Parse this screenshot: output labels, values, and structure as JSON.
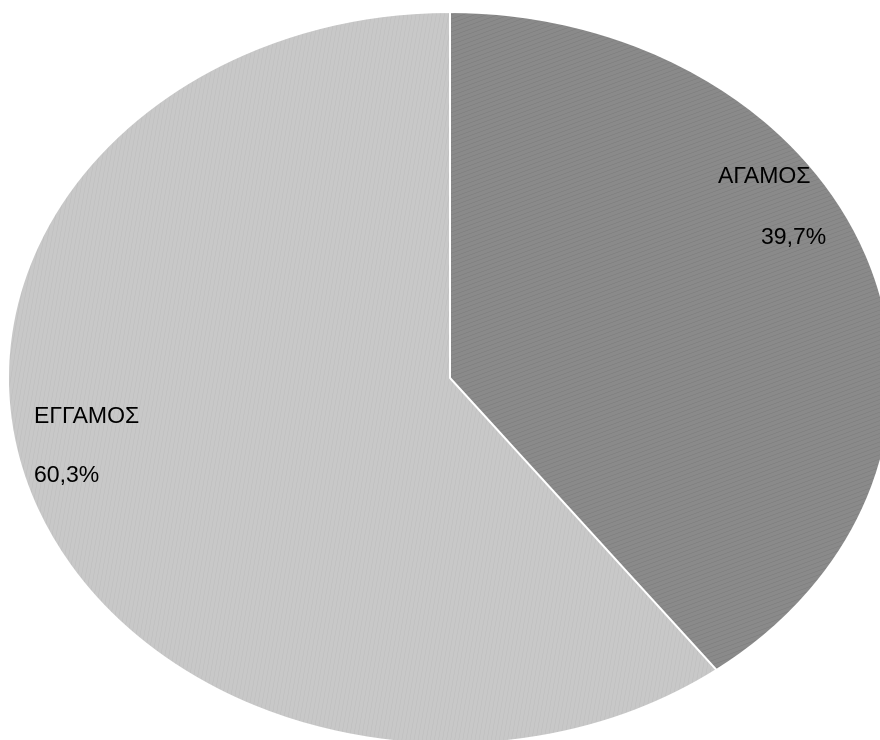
{
  "chart_data": {
    "type": "pie",
    "title": "",
    "slices": [
      {
        "name": "ΑΓΑΜΟΣ",
        "value": 39.7,
        "label": "39,7%",
        "color": "#8a8a8a"
      },
      {
        "name": "ΕΓΓΑΜΟΣ",
        "value": 60.3,
        "label": "60,3%",
        "color": "#c4c4c4"
      }
    ],
    "start": "12 o'clock",
    "direction": "clockwise",
    "legend": "none"
  }
}
